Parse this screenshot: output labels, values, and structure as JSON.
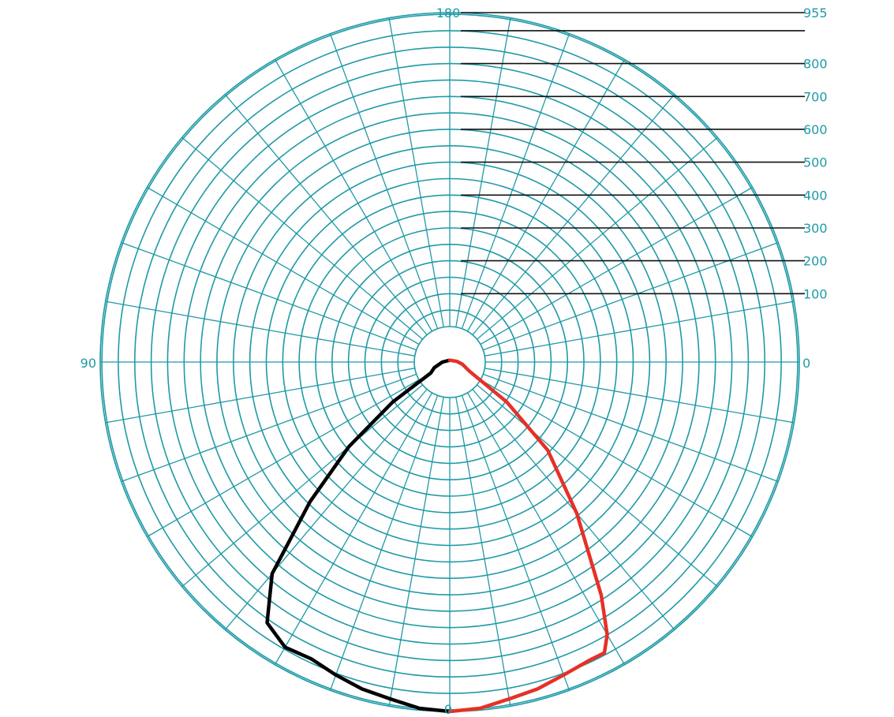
{
  "chart_data": {
    "type": "polar-line",
    "title": "",
    "angle_labels": {
      "bottom": "0",
      "right": "0",
      "left": "90",
      "top": "180"
    },
    "radial_ticks": [
      100,
      200,
      300,
      400,
      500,
      600,
      700,
      800,
      955
    ],
    "radial_max": 955,
    "grid": true,
    "series": [
      {
        "side": "left",
        "color": "#000000",
        "points": [
          {
            "angle": 0,
            "r": 955
          },
          {
            "angle": 5,
            "r": 950
          },
          {
            "angle": 10,
            "r": 935
          },
          {
            "angle": 15,
            "r": 925
          },
          {
            "angle": 20,
            "r": 910
          },
          {
            "angle": 25,
            "r": 895
          },
          {
            "angle": 30,
            "r": 900
          },
          {
            "angle": 35,
            "r": 870
          },
          {
            "angle": 40,
            "r": 755
          },
          {
            "angle": 45,
            "r": 540
          },
          {
            "angle": 50,
            "r": 360
          },
          {
            "angle": 55,
            "r": 190
          },
          {
            "angle": 60,
            "r": 60
          },
          {
            "angle": 70,
            "r": 45
          },
          {
            "angle": 90,
            "r": 20
          },
          {
            "angle": 180,
            "r": 5
          }
        ]
      },
      {
        "side": "right",
        "color": "#e63027",
        "points": [
          {
            "angle": 0,
            "r": 955
          },
          {
            "angle": 5,
            "r": 950
          },
          {
            "angle": 10,
            "r": 935
          },
          {
            "angle": 15,
            "r": 925
          },
          {
            "angle": 20,
            "r": 910
          },
          {
            "angle": 25,
            "r": 900
          },
          {
            "angle": 28,
            "r": 900
          },
          {
            "angle": 30,
            "r": 860
          },
          {
            "angle": 33,
            "r": 760
          },
          {
            "angle": 40,
            "r": 540
          },
          {
            "angle": 48,
            "r": 360
          },
          {
            "angle": 55,
            "r": 190
          },
          {
            "angle": 65,
            "r": 60
          },
          {
            "angle": 80,
            "r": 35
          },
          {
            "angle": 95,
            "r": 20
          },
          {
            "angle": 180,
            "r": 5
          }
        ]
      }
    ]
  }
}
